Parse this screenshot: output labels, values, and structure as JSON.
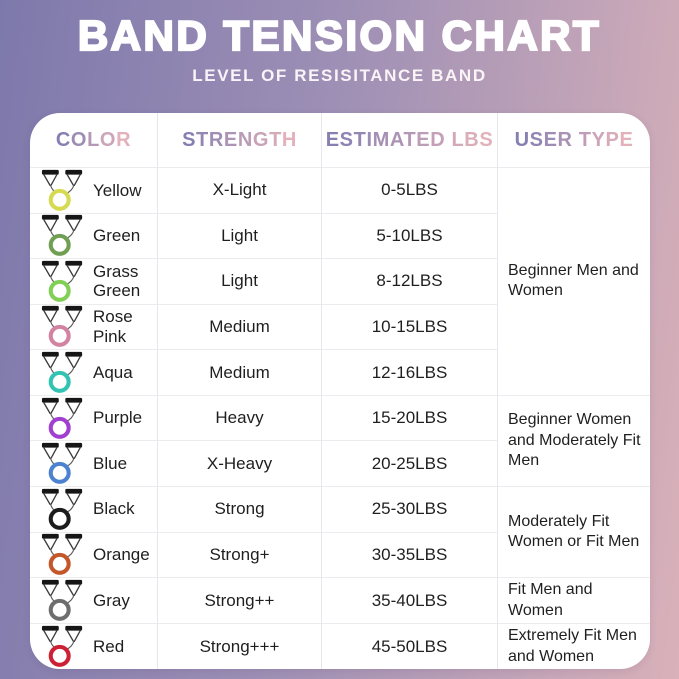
{
  "page": {
    "title": "BAND TENSION CHART",
    "subtitle": "LEVEL OF RESISITANCE BAND"
  },
  "table": {
    "columns": [
      "COLOR",
      "STRENGTH",
      "ESTIMATED LBS",
      "USER TYPE"
    ],
    "rows": [
      {
        "color": "Yellow",
        "ring_hex": "#d5da51",
        "strength": "X-Light",
        "lbs": "0-5LBS"
      },
      {
        "color": "Green",
        "ring_hex": "#709f54",
        "strength": "Light",
        "lbs": "5-10LBS"
      },
      {
        "color": "Grass Green",
        "ring_hex": "#82cf55",
        "strength": "Light",
        "lbs": "8-12LBS"
      },
      {
        "color": "Rose Pink",
        "ring_hex": "#d283a1",
        "strength": "Medium",
        "lbs": "10-15LBS"
      },
      {
        "color": "Aqua",
        "ring_hex": "#33c3b3",
        "strength": "Medium",
        "lbs": "12-16LBS"
      },
      {
        "color": "Purple",
        "ring_hex": "#a03fd0",
        "strength": "Heavy",
        "lbs": "15-20LBS"
      },
      {
        "color": "Blue",
        "ring_hex": "#4c82d0",
        "strength": "X-Heavy",
        "lbs": "20-25LBS"
      },
      {
        "color": "Black",
        "ring_hex": "#1c1c1c",
        "strength": "Strong",
        "lbs": "25-30LBS"
      },
      {
        "color": "Orange",
        "ring_hex": "#c4572a",
        "strength": "Strong+",
        "lbs": "30-35LBS"
      },
      {
        "color": "Gray",
        "ring_hex": "#6e6e6e",
        "strength": "Strong++",
        "lbs": "35-40LBS"
      },
      {
        "color": "Red",
        "ring_hex": "#cc2135",
        "strength": "Strong+++",
        "lbs": "45-50LBS"
      }
    ],
    "user_type_groups": [
      {
        "label": "Beginner Men and Women",
        "span": 5
      },
      {
        "label": "Beginner Women and Moderately Fit Men",
        "span": 2
      },
      {
        "label": "Moderately Fit Women or Fit Men",
        "span": 2
      },
      {
        "label": "Fit Men and Women",
        "span": 1
      },
      {
        "label": "Extremely Fit Men and Women",
        "span": 1
      }
    ]
  },
  "chart_data": {
    "type": "table",
    "title": "BAND TENSION CHART",
    "subtitle": "LEVEL OF RESISITANCE BAND",
    "columns": [
      "COLOR",
      "STRENGTH",
      "ESTIMATED LBS",
      "USER TYPE"
    ],
    "rows": [
      [
        "Yellow",
        "X-Light",
        "0-5LBS",
        "Beginner Men and Women"
      ],
      [
        "Green",
        "Light",
        "5-10LBS",
        "Beginner Men and Women"
      ],
      [
        "Grass Green",
        "Light",
        "8-12LBS",
        "Beginner Men and Women"
      ],
      [
        "Rose Pink",
        "Medium",
        "10-15LBS",
        "Beginner Men and Women"
      ],
      [
        "Aqua",
        "Medium",
        "12-16LBS",
        "Beginner Men and Women"
      ],
      [
        "Purple",
        "Heavy",
        "15-20LBS",
        "Beginner Women and Moderately Fit Men"
      ],
      [
        "Blue",
        "X-Heavy",
        "20-25LBS",
        "Beginner Women and Moderately Fit Men"
      ],
      [
        "Black",
        "Strong",
        "25-30LBS",
        "Moderately Fit Women or Fit Men"
      ],
      [
        "Orange",
        "Strong+",
        "30-35LBS",
        "Moderately Fit Women or Fit Men"
      ],
      [
        "Gray",
        "Strong++",
        "35-40LBS",
        "Fit Men and Women"
      ],
      [
        "Red",
        "Strong+++",
        "45-50LBS",
        "Extremely Fit Men and Women"
      ]
    ],
    "lbs_ranges": [
      [
        0,
        5
      ],
      [
        5,
        10
      ],
      [
        8,
        12
      ],
      [
        10,
        15
      ],
      [
        12,
        16
      ],
      [
        15,
        20
      ],
      [
        20,
        25
      ],
      [
        25,
        30
      ],
      [
        30,
        35
      ],
      [
        35,
        40
      ],
      [
        45,
        50
      ]
    ]
  },
  "colors": {
    "background_left": "#7e79ac",
    "background_right": "#d9b1b9",
    "card": "#ffffff",
    "header_grad_start": "#867fb1",
    "header_grad_end": "#e2b1ba",
    "divider": "#ecebf0",
    "body_text": "#1f1f1f",
    "title_text": "#ffffff"
  }
}
